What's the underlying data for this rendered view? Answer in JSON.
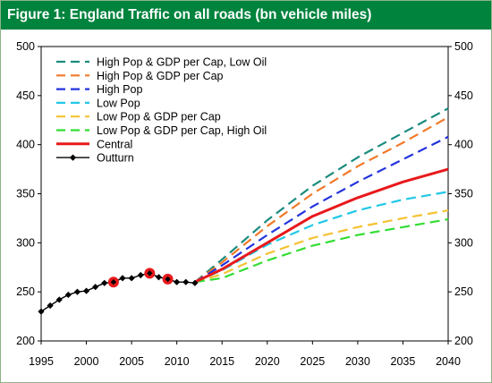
{
  "chart_data": {
    "type": "line",
    "title": "Figure 1: England Traffic on all roads (bn vehicle miles)",
    "xlabel": "",
    "ylabel": "",
    "xlim": [
      1995,
      2040
    ],
    "ylim": [
      200,
      500
    ],
    "x_ticks": [
      "1995",
      "2000",
      "2005",
      "2010",
      "2015",
      "2020",
      "2025",
      "2030",
      "2035",
      "2040"
    ],
    "y_ticks": [
      "200",
      "250",
      "300",
      "350",
      "400",
      "450",
      "500"
    ],
    "grid": false,
    "legend_position": "top-left",
    "series": [
      {
        "name": "High Pop & GDP per Cap, Low Oil",
        "color": "#1b8c7f",
        "style": "dash",
        "x": [
          2012,
          2015,
          2020,
          2025,
          2030,
          2035,
          2040
        ],
        "y": [
          260,
          283,
          323,
          358,
          387,
          412,
          437
        ]
      },
      {
        "name": "High Pop & GDP per Cap",
        "color": "#f07a2a",
        "style": "dash",
        "x": [
          2012,
          2015,
          2020,
          2025,
          2030,
          2035,
          2040
        ],
        "y": [
          260,
          280,
          317,
          350,
          378,
          402,
          428
        ]
      },
      {
        "name": "High Pop",
        "color": "#2233dd",
        "style": "dash",
        "x": [
          2012,
          2015,
          2020,
          2025,
          2030,
          2035,
          2040
        ],
        "y": [
          260,
          277,
          308,
          337,
          362,
          385,
          408
        ]
      },
      {
        "name": "Low Pop",
        "color": "#22c8e6",
        "style": "dash",
        "x": [
          2012,
          2015,
          2020,
          2025,
          2030,
          2035,
          2040
        ],
        "y": [
          260,
          272,
          298,
          318,
          333,
          344,
          352
        ]
      },
      {
        "name": "Low Pop & GDP per Cap",
        "color": "#f5c232",
        "style": "dash",
        "x": [
          2012,
          2015,
          2020,
          2025,
          2030,
          2035,
          2040
        ],
        "y": [
          260,
          268,
          289,
          305,
          316,
          325,
          333
        ]
      },
      {
        "name": "Low Pop & GDP per Cap, High Oil",
        "color": "#33dd33",
        "style": "dash",
        "x": [
          2012,
          2015,
          2020,
          2025,
          2030,
          2035,
          2040
        ],
        "y": [
          260,
          264,
          282,
          297,
          308,
          316,
          324
        ]
      },
      {
        "name": "Central",
        "color": "#e8191c",
        "style": "solid",
        "x": [
          2012,
          2015,
          2020,
          2025,
          2030,
          2035,
          2040
        ],
        "y": [
          260,
          273,
          300,
          327,
          346,
          362,
          375
        ]
      },
      {
        "name": "Outturn",
        "color": "#000000",
        "style": "marker",
        "x": [
          1995,
          1996,
          1997,
          1998,
          1999,
          2000,
          2001,
          2002,
          2003,
          2004,
          2005,
          2006,
          2007,
          2008,
          2009,
          2010,
          2011,
          2012
        ],
        "y": [
          230,
          236,
          242,
          247,
          250,
          251,
          255,
          259,
          260,
          264,
          264,
          267,
          269,
          265,
          263,
          260,
          260,
          259
        ]
      }
    ],
    "highlighted_points": [
      {
        "x": 2003,
        "y": 260
      },
      {
        "x": 2007,
        "y": 269
      },
      {
        "x": 2009,
        "y": 263
      }
    ]
  }
}
